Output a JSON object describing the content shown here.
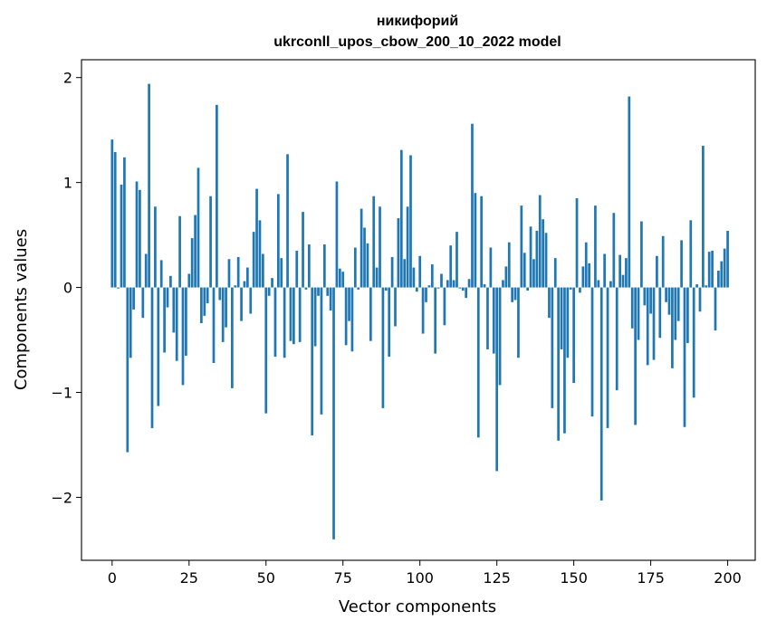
{
  "chart_data": {
    "type": "bar",
    "title_line1": "никифорий",
    "title_line2": "ukrconll_upos_cbow_200_10_2022 model",
    "xlabel": "Vector components",
    "ylabel": "Components values",
    "xlim": [
      -9.95,
      208.95
    ],
    "ylim": [
      -2.6,
      2.17
    ],
    "x_ticks": [
      0,
      25,
      50,
      75,
      100,
      125,
      150,
      175,
      200
    ],
    "x_tick_labels": [
      "0",
      "25",
      "50",
      "75",
      "100",
      "125",
      "150",
      "175",
      "200"
    ],
    "y_ticks": [
      -2,
      -1,
      0,
      1,
      2
    ],
    "y_tick_labels": [
      "−2",
      "−1",
      "0",
      "1",
      "2"
    ],
    "bar_color": "#1f77b4",
    "grid": false,
    "legend": "none",
    "values": [
      1.41,
      1.29,
      -0.01,
      0.98,
      1.24,
      -1.57,
      -0.67,
      -0.21,
      1.01,
      0.93,
      -0.29,
      0.32,
      1.94,
      -1.34,
      0.77,
      -1.13,
      0.26,
      -0.62,
      -0.19,
      0.11,
      -0.43,
      -0.7,
      0.68,
      -0.93,
      -0.65,
      0.13,
      0.47,
      0.69,
      1.14,
      -0.34,
      -0.27,
      -0.15,
      0.87,
      -0.72,
      1.74,
      -0.12,
      -0.52,
      -0.38,
      0.27,
      -0.96,
      0.02,
      0.29,
      -0.32,
      0.06,
      0.19,
      -0.25,
      0.53,
      0.94,
      0.64,
      0.32,
      -1.2,
      -0.08,
      0.09,
      -0.66,
      0.89,
      0.28,
      -0.67,
      1.27,
      -0.51,
      -0.54,
      0.35,
      -0.52,
      0.72,
      -0.02,
      0.41,
      -1.41,
      -0.56,
      -0.08,
      -1.21,
      0.41,
      -0.08,
      -0.22,
      -2.4,
      1.01,
      0.18,
      0.15,
      -0.55,
      -0.32,
      -0.61,
      0.38,
      -0.02,
      0.75,
      0.57,
      0.42,
      -0.51,
      0.87,
      0.19,
      0.77,
      -1.15,
      -0.03,
      -0.66,
      0.29,
      -0.37,
      0.66,
      1.31,
      0.27,
      0.77,
      1.26,
      0.19,
      -0.04,
      0.3,
      -0.44,
      -0.14,
      0.02,
      0.22,
      -0.63,
      -0.01,
      0.13,
      -0.36,
      0.07,
      0.4,
      0.07,
      0.53,
      -0.01,
      -0.03,
      -0.1,
      0.08,
      1.56,
      0.9,
      -1.43,
      0.87,
      0.03,
      -0.59,
      0.38,
      -0.63,
      -1.75,
      -0.93,
      0.07,
      0.2,
      0.43,
      -0.14,
      -0.12,
      -0.67,
      0.78,
      0.33,
      -0.03,
      0.58,
      0.27,
      0.54,
      0.88,
      0.65,
      0.52,
      -0.29,
      -1.15,
      0.28,
      -1.46,
      -0.59,
      -1.39,
      -0.67,
      -0.02,
      -0.91,
      0.85,
      -0.05,
      0.2,
      0.43,
      0.23,
      -1.23,
      0.78,
      0.07,
      -2.03,
      0.32,
      -1.34,
      0.06,
      0.71,
      -0.98,
      0.31,
      0.12,
      0.28,
      1.82,
      -0.39,
      -1.31,
      -0.5,
      0.63,
      -0.17,
      -0.74,
      -0.25,
      -0.69,
      0.3,
      -0.48,
      0.49,
      -0.14,
      -0.26,
      -0.77,
      -0.5,
      -0.32,
      0.45,
      -1.33,
      -0.53,
      0.64,
      -1.05,
      0.03,
      -0.23,
      1.35,
      0.02,
      0.34,
      0.35,
      -0.41,
      0.16,
      0.25,
      0.37,
      0.54
    ]
  }
}
